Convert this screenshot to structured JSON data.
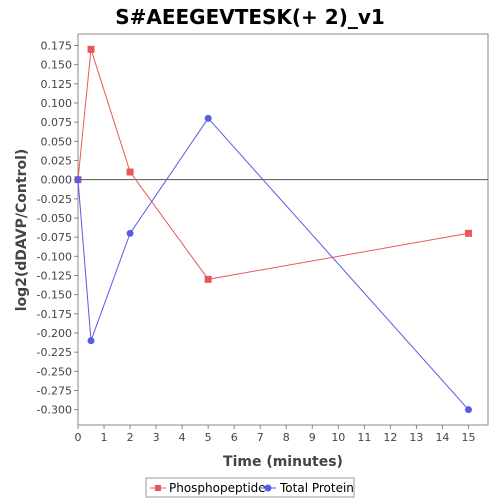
{
  "chart_data": {
    "type": "line",
    "title": "S#AEEGEVTESK(+ 2)_v1",
    "xlabel": "Time (minutes)",
    "ylabel": "log2(dDAVP/Control)",
    "xlim": [
      0,
      15.75
    ],
    "ylim": [
      -0.32,
      0.19
    ],
    "x_ticks": [
      0,
      1,
      2,
      3,
      4,
      5,
      6,
      7,
      8,
      9,
      10,
      11,
      12,
      13,
      14,
      15
    ],
    "y_ticks": [
      "0.175",
      "0.150",
      "0.125",
      "0.100",
      "0.075",
      "0.050",
      "0.025",
      "0.000",
      "-0.025",
      "-0.050",
      "-0.075",
      "-0.100",
      "-0.125",
      "-0.150",
      "-0.175",
      "-0.200",
      "-0.225",
      "-0.250",
      "-0.275",
      "-0.300"
    ],
    "grid": false,
    "zero_line": true,
    "legend_position": "bottom",
    "series": [
      {
        "name": "Phosphopeptide",
        "color": "#e8585a",
        "marker": "square",
        "x": [
          0,
          0.5,
          2,
          5,
          15
        ],
        "y": [
          0.0,
          0.17,
          0.01,
          -0.13,
          -0.07
        ]
      },
      {
        "name": "Total Protein",
        "color": "#5a5ae8",
        "marker": "circle",
        "x": [
          0,
          0.5,
          2,
          5,
          15
        ],
        "y": [
          0.0,
          -0.21,
          -0.07,
          0.08,
          -0.3
        ]
      }
    ]
  }
}
